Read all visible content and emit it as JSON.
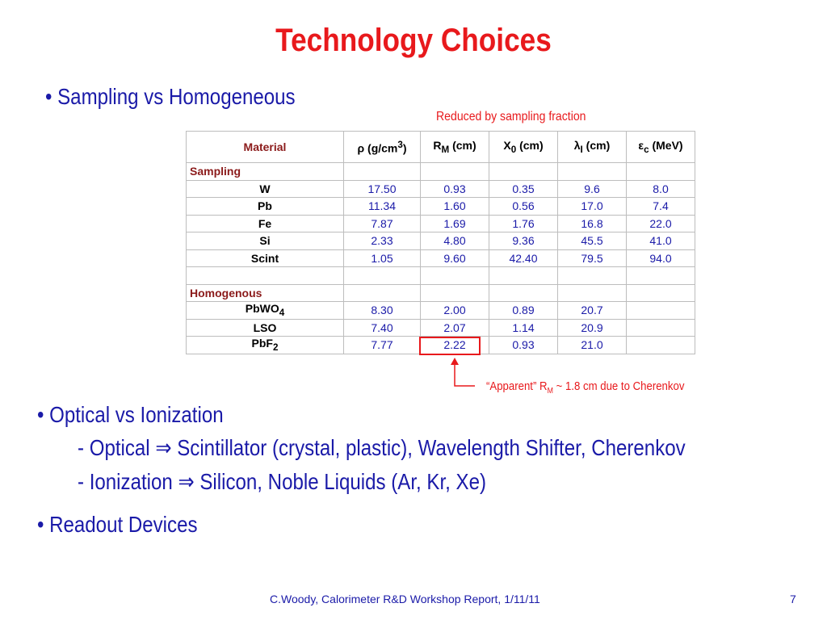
{
  "title": "Technology Choices",
  "bullets": {
    "sampling": "• Sampling vs Homogeneous",
    "optical": "• Optical vs Ionization",
    "optical_sub1_a": "- Optical ",
    "optical_sub1_b": " Scintillator (crystal, plastic), Wavelength Shifter, Cherenkov",
    "optical_sub2_a": "- Ionization ",
    "optical_sub2_b": " Silicon, Noble Liquids (Ar, Kr, Xe)",
    "readout": "• Readout Devices",
    "arrow_symbol": "⇒"
  },
  "notes": {
    "reduced": "Reduced by sampling fraction",
    "apparent_a": "“Apparent” R",
    "apparent_sub": "M",
    "apparent_b": "  ~ 1.8 cm due to Cherenkov"
  },
  "table": {
    "headers": {
      "material": "Material",
      "rho_sym": "ρ",
      "rho_unit_a": "  (g/cm",
      "rho_unit_sup": "3",
      "rho_unit_b": ")",
      "rm_a": "R",
      "rm_sub": "M",
      "rm_b": " (cm)",
      "x0_a": "X",
      "x0_sub": "0",
      "x0_b": " (cm)",
      "li_sym": "λ",
      "li_sub": "I",
      "li_b": " (cm)",
      "ec_sym": "ε",
      "ec_sub": "c",
      "ec_b": " (MeV)"
    },
    "sampling_label": "Sampling",
    "homogenous_label": "Homogenous",
    "sampling_rows": [
      {
        "name": "W",
        "values": [
          "17.50",
          "0.93",
          "0.35",
          "9.6",
          "8.0"
        ]
      },
      {
        "name": "Pb",
        "values": [
          "11.34",
          "1.60",
          "0.56",
          "17.0",
          "7.4"
        ]
      },
      {
        "name": "Fe",
        "values": [
          "7.87",
          "1.69",
          "1.76",
          "16.8",
          "22.0"
        ]
      },
      {
        "name": "Si",
        "values": [
          "2.33",
          "4.80",
          "9.36",
          "45.5",
          "41.0"
        ]
      },
      {
        "name": "Scint",
        "values": [
          "1.05",
          "9.60",
          "42.40",
          "79.5",
          "94.0"
        ]
      }
    ],
    "homogenous_rows": [
      {
        "name": "PbWO",
        "sub": "4",
        "values": [
          "8.30",
          "2.00",
          "0.89",
          "20.7",
          ""
        ]
      },
      {
        "name": "LSO",
        "sub": "",
        "values": [
          "7.40",
          "2.07",
          "1.14",
          "20.9",
          ""
        ]
      },
      {
        "name": "PbF",
        "sub": "2",
        "values": [
          "7.77",
          "2.22",
          "0.93",
          "21.0",
          ""
        ]
      }
    ]
  },
  "footer": {
    "citation": "C.Woody, Calorimeter R&D Workshop Report, 1/11/11",
    "page": "7"
  },
  "colors": {
    "title": "#e8191c",
    "body_text": "#1a1aa8",
    "section_label": "#8b1a1a"
  }
}
